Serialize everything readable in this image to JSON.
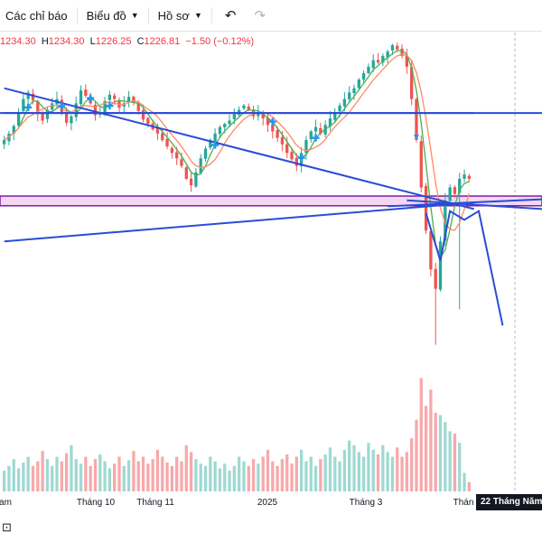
{
  "toolbar": {
    "indicators_label": "Các chỉ báo",
    "chart_label": "Biểu đồ",
    "profile_label": "Hồ sơ",
    "undo_icon": "undo-icon",
    "redo_icon": "redo-icon"
  },
  "legend": {
    "open_value": "1234.30",
    "high_key": "H",
    "high_value": "1234.30",
    "low_key": "L",
    "low_value": "1226.25",
    "close_key": "C",
    "close_value": "1226.81",
    "change": "−1.50 (−0.12%)"
  },
  "time_axis": {
    "ticks": [
      "am",
      "Tháng 10",
      "Tháng 11",
      "2025",
      "Tháng 3",
      "Thán"
    ],
    "crosshair_label": "22 Tháng Năm '"
  },
  "colors": {
    "up": "#26a69a",
    "down": "#ef5350",
    "ma_fast": "#4caf50",
    "ma_slow": "#ff8a65",
    "trendline": "#2a4cd7",
    "zone_border": "#7b1fa2",
    "zone_fill": "#f3d7f3",
    "marker": "#2196f3"
  },
  "chart_data": {
    "type": "candlestick",
    "instrument_last": {
      "open": 1234.3,
      "high": 1234.3,
      "low": 1226.25,
      "close": 1226.81,
      "change": -1.5,
      "change_pct": -0.12
    },
    "x_axis_labels": [
      "am",
      "Tháng 10",
      "Tháng 11",
      "2025",
      "Tháng 3",
      "Thán"
    ],
    "ylim": [
      1050,
      1360
    ],
    "closes": [
      1262,
      1268,
      1275,
      1288,
      1300,
      1306,
      1299,
      1286,
      1280,
      1290,
      1296,
      1300,
      1288,
      1278,
      1284,
      1296,
      1308,
      1303,
      1296,
      1285,
      1288,
      1298,
      1304,
      1300,
      1292,
      1296,
      1302,
      1297,
      1289,
      1281,
      1277,
      1272,
      1268,
      1262,
      1256,
      1250,
      1245,
      1238,
      1226,
      1220,
      1232,
      1245,
      1254,
      1262,
      1268,
      1274,
      1277,
      1280,
      1286,
      1290,
      1294,
      1290,
      1284,
      1288,
      1282,
      1276,
      1270,
      1264,
      1258,
      1250,
      1244,
      1238,
      1250,
      1262,
      1270,
      1274,
      1268,
      1276,
      1282,
      1288,
      1294,
      1300,
      1306,
      1310,
      1318,
      1324,
      1330,
      1336,
      1334,
      1340,
      1344,
      1350,
      1346,
      1340,
      1330,
      1300,
      1262,
      1218,
      1178,
      1142,
      1124,
      1168,
      1206,
      1218,
      1212,
      1226,
      1230,
      1226
    ],
    "volume_level": [
      0.18,
      0.22,
      0.28,
      0.2,
      0.25,
      0.3,
      0.22,
      0.26,
      0.35,
      0.28,
      0.22,
      0.3,
      0.26,
      0.33,
      0.4,
      0.28,
      0.24,
      0.3,
      0.22,
      0.28,
      0.32,
      0.26,
      0.2,
      0.24,
      0.3,
      0.22,
      0.27,
      0.35,
      0.26,
      0.3,
      0.24,
      0.28,
      0.36,
      0.3,
      0.25,
      0.22,
      0.3,
      0.26,
      0.4,
      0.34,
      0.28,
      0.24,
      0.22,
      0.3,
      0.26,
      0.2,
      0.24,
      0.18,
      0.22,
      0.3,
      0.26,
      0.22,
      0.28,
      0.24,
      0.3,
      0.36,
      0.26,
      0.22,
      0.28,
      0.32,
      0.24,
      0.3,
      0.36,
      0.26,
      0.3,
      0.22,
      0.28,
      0.32,
      0.38,
      0.3,
      0.26,
      0.36,
      0.44,
      0.4,
      0.34,
      0.3,
      0.42,
      0.36,
      0.32,
      0.4,
      0.34,
      0.3,
      0.38,
      0.3,
      0.34,
      0.46,
      0.62,
      0.98,
      0.74,
      0.88,
      0.68,
      0.66,
      0.6,
      0.52,
      0.5,
      0.42,
      0.16,
      0.08
    ],
    "trendlines": [
      {
        "name": "descending-resistance",
        "points": [
          [
            0,
            1310
          ],
          [
            98,
            1198
          ]
        ]
      },
      {
        "name": "ascending-support",
        "points": [
          [
            0,
            1168
          ],
          [
            98,
            1204
          ]
        ]
      },
      {
        "name": "horizontal-resistance",
        "points": [
          [
            0,
            1287
          ],
          [
            98,
            1287
          ]
        ]
      },
      {
        "name": "projection",
        "points": [
          [
            88,
            1194
          ],
          [
            91,
            1150
          ],
          [
            93,
            1196
          ],
          [
            96,
            1188
          ],
          [
            99,
            1196
          ],
          [
            104,
            1090
          ]
        ]
      }
    ],
    "support_zone": {
      "low": 1201,
      "high": 1210
    }
  }
}
